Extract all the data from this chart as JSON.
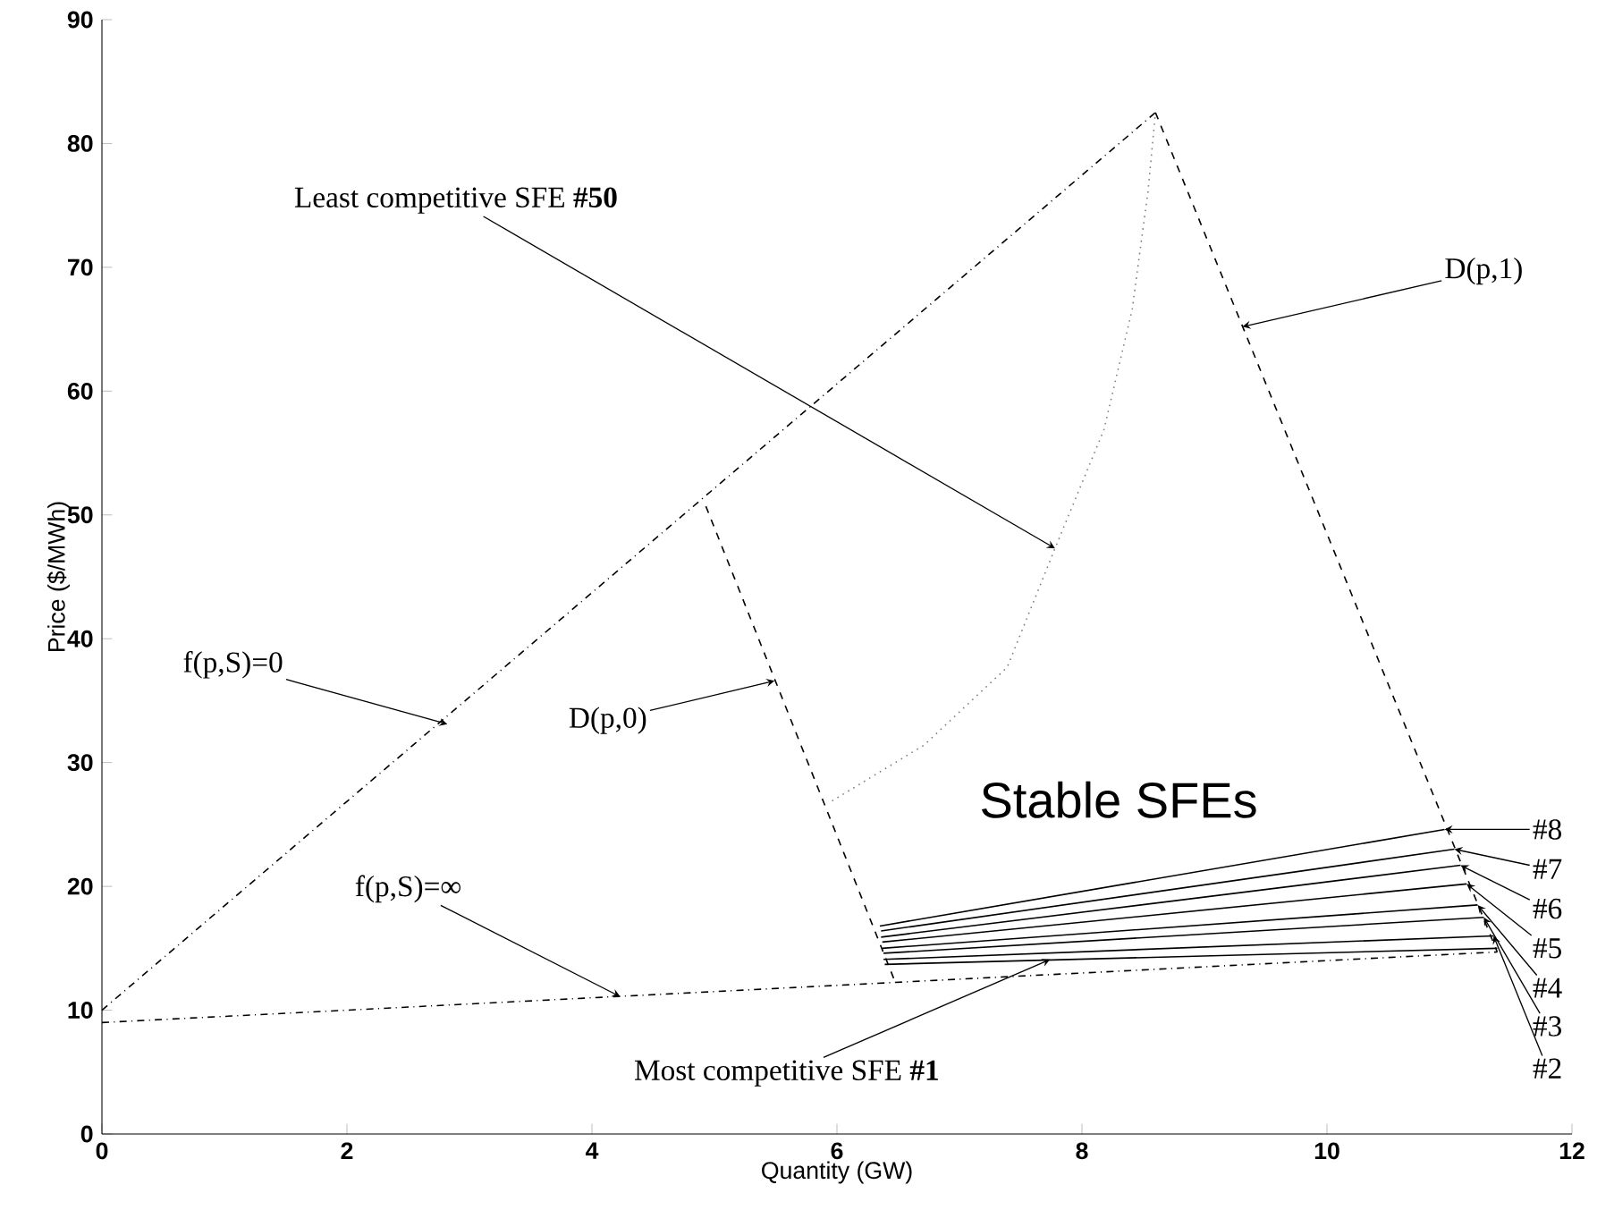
{
  "chart_data": {
    "type": "line",
    "xlabel": "Quantity (GW)",
    "ylabel": "Price ($/MWh)",
    "xlim": [
      0,
      12
    ],
    "ylim": [
      0,
      90
    ],
    "xticks": [
      0,
      2,
      4,
      6,
      8,
      10,
      12
    ],
    "yticks": [
      0,
      10,
      20,
      30,
      40,
      50,
      60,
      70,
      80,
      90
    ],
    "series": [
      {
        "color": "#000000",
        "line_style": "dashdot",
        "x": [
          0,
          8.6
        ],
        "values": [
          10,
          82.5
        ]
      },
      {
        "color": "#000000",
        "line_style": "dashdot",
        "x": [
          0,
          11.39
        ],
        "values": [
          9,
          14.7
        ]
      },
      {
        "color": "#000000",
        "line_style": "dashed",
        "x": [
          8.6,
          11.39
        ],
        "values": [
          82.5,
          14.7
        ]
      },
      {
        "color": "#000000",
        "line_style": "dashed",
        "x": [
          4.93,
          6.47
        ],
        "values": [
          50.7,
          12.4
        ]
      },
      {
        "color": "#808080",
        "line_style": "dotted",
        "x": [
          5.96,
          6.71,
          7.39,
          7.78,
          8.18,
          8.41,
          8.54,
          8.6
        ],
        "values": [
          26.9,
          31.4,
          37.7,
          47.3,
          56.9,
          66.6,
          76.2,
          82.5
        ]
      },
      {
        "color": "#000000",
        "line_style": "solid",
        "x": [
          6.39,
          11.39
        ],
        "values": [
          13.7,
          15.0
        ]
      },
      {
        "color": "#000000",
        "line_style": "solid",
        "x": [
          6.38,
          11.36
        ],
        "values": [
          14.1,
          16.0
        ]
      },
      {
        "color": "#000000",
        "line_style": "solid",
        "x": [
          6.38,
          11.28
        ],
        "values": [
          14.6,
          17.5
        ]
      },
      {
        "color": "#000000",
        "line_style": "solid",
        "x": [
          6.37,
          11.23
        ],
        "values": [
          15.0,
          18.5
        ]
      },
      {
        "color": "#000000",
        "line_style": "solid",
        "x": [
          6.37,
          11.14
        ],
        "values": [
          15.5,
          20.2
        ]
      },
      {
        "color": "#000000",
        "line_style": "solid",
        "x": [
          6.36,
          11.09
        ],
        "values": [
          15.9,
          21.7
        ]
      },
      {
        "color": "#000000",
        "line_style": "solid",
        "x": [
          6.36,
          11.04
        ],
        "values": [
          16.4,
          23.0
        ]
      },
      {
        "color": "#000000",
        "line_style": "solid",
        "x": [
          6.35,
          10.96
        ],
        "values": [
          16.8,
          24.6
        ]
      }
    ],
    "annotations": [
      {
        "text": "Least competitive SFE **#50**",
        "x": 7.78,
        "y": 47.3
      },
      {
        "text": "D(p,1)",
        "x": 9.31,
        "y": 65.2
      },
      {
        "text": "f(p,S)=0",
        "x": 2.82,
        "y": 33.1
      },
      {
        "text": "D(p,0)",
        "x": 5.49,
        "y": 36.6
      },
      {
        "text": "f(p,S)=∞",
        "x": 4.23,
        "y": 11.1
      },
      {
        "text": "Most competitive SFE **#1**",
        "x": 7.74,
        "y": 14.1
      },
      {
        "text": "#8",
        "x": 10.96,
        "y": 24.6
      },
      {
        "text": "#7",
        "x": 11.04,
        "y": 23.0
      },
      {
        "text": "#6",
        "x": 11.09,
        "y": 21.7
      },
      {
        "text": "#5",
        "x": 11.14,
        "y": 20.2
      },
      {
        "text": "#4",
        "x": 11.23,
        "y": 18.5
      },
      {
        "text": "#3",
        "x": 11.28,
        "y": 17.5
      },
      {
        "text": "#2",
        "x": 11.36,
        "y": 16.0
      },
      "Stable SFEs"
    ]
  }
}
